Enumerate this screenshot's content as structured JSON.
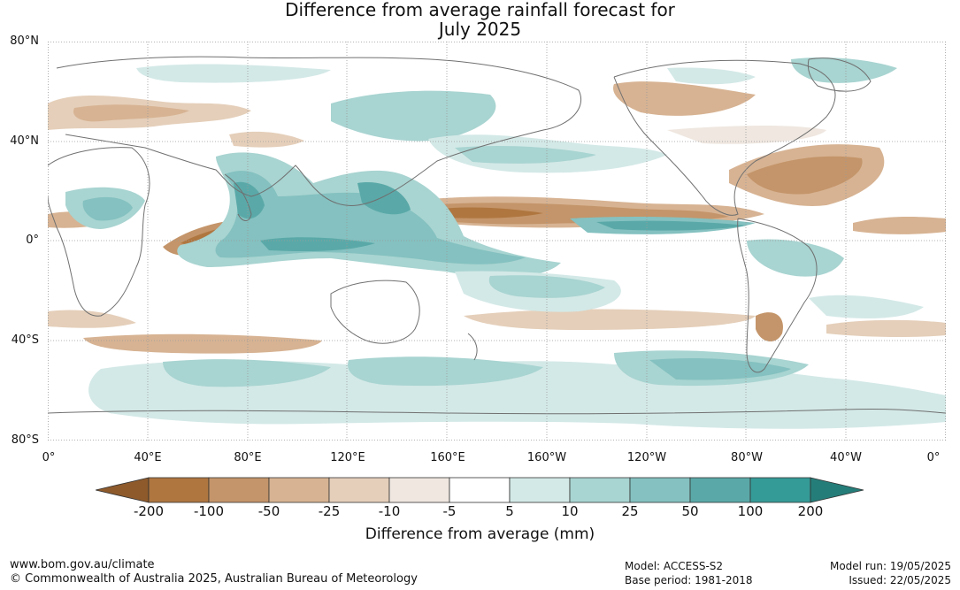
{
  "title_line1": "Difference from average rainfall forecast for",
  "title_line2": "July 2025",
  "lat_labels": [
    "80°N",
    "40°N",
    "0°",
    "40°S",
    "80°S"
  ],
  "lon_labels": [
    "0°",
    "40°E",
    "80°E",
    "120°E",
    "160°E",
    "160°W",
    "120°W",
    "80°W",
    "40°W",
    "0°"
  ],
  "legend": {
    "title": "Difference from average (mm)",
    "ticks": [
      "-200",
      "-100",
      "-50",
      "-25",
      "-10",
      "-5",
      "5",
      "10",
      "25",
      "50",
      "100",
      "200"
    ],
    "colors": [
      "#8e5a2c",
      "#af7640",
      "#c4956a",
      "#d7b393",
      "#e5cfba",
      "#efe7e0",
      "#ffffff",
      "#d3e9e7",
      "#a8d4d1",
      "#84c1c0",
      "#5aa9a8",
      "#359b97",
      "#257d79"
    ]
  },
  "footer": {
    "url": "www.bom.gov.au/climate",
    "copyright": "© Commonwealth of Australia 2025, Australian Bureau of Meteorology",
    "model": "Model: ACCESS-S2",
    "base_period": "Base period: 1981-2018",
    "model_run": "Model run: 19/05/2025",
    "issued": "Issued: 22/05/2025"
  }
}
